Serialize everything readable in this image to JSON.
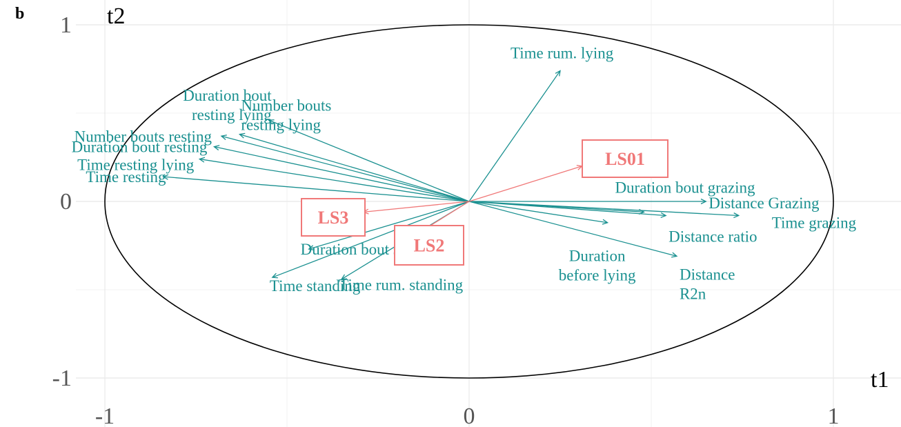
{
  "chart_data": {
    "type": "scatter",
    "panel_label": "b",
    "xlabel": "t1",
    "ylabel": "t2",
    "xlim": [
      -1.1,
      1.1
    ],
    "ylim": [
      -1.03,
      1.03
    ],
    "x_ticks": [
      {
        "value": -1,
        "label": "-1"
      },
      {
        "value": 0,
        "label": "0"
      },
      {
        "value": 1,
        "label": "1"
      }
    ],
    "y_ticks": [
      {
        "value": -1,
        "label": "-1"
      },
      {
        "value": 0,
        "label": "0"
      },
      {
        "value": 1,
        "label": "1"
      }
    ],
    "grid": true,
    "correlation_circle": true,
    "colors": {
      "variables": "#1a9090",
      "supplementary": "#f07878",
      "grid": "#e8e8e8",
      "circle": "#000000"
    },
    "variables": [
      {
        "name": "Time rum. lying",
        "lines": [
          "Time rum. lying"
        ],
        "x": 0.25,
        "y": 0.74,
        "anchor": "start"
      },
      {
        "name": "Duration bout resting lying",
        "lines": [
          "Duration bout",
          "resting lying"
        ],
        "x": -0.55,
        "y": 0.46,
        "anchor": "end"
      },
      {
        "name": "Number bouts resting lying",
        "lines": [
          "Number bouts",
          "resting lying"
        ],
        "x": -0.63,
        "y": 0.38,
        "anchor": "start"
      },
      {
        "name": "Number bouts resting",
        "lines": [
          "Number bouts resting"
        ],
        "x": -0.68,
        "y": 0.37,
        "anchor": "end"
      },
      {
        "name": "Duration bout resting",
        "lines": [
          "Duration bout resting"
        ],
        "x": -0.7,
        "y": 0.31,
        "anchor": "end"
      },
      {
        "name": "Time resting lying",
        "lines": [
          "Time resting lying"
        ],
        "x": -0.74,
        "y": 0.24,
        "anchor": "end"
      },
      {
        "name": "Time resting",
        "lines": [
          "Time resting"
        ],
        "x": -0.84,
        "y": 0.14,
        "anchor": "end"
      },
      {
        "name": "Duration bout grazing",
        "lines": [
          "Duration bout grazing"
        ],
        "x": 0.48,
        "y": -0.06,
        "anchor": "start"
      },
      {
        "name": "Distance Grazing",
        "lines": [
          "Distance Grazing"
        ],
        "x": 0.65,
        "y": 0.0,
        "anchor": "start"
      },
      {
        "name": "Time grazing",
        "lines": [
          "Time grazing"
        ],
        "x": 0.74,
        "y": -0.08,
        "anchor": "start"
      },
      {
        "name": "Distance ratio",
        "lines": [
          "Distance ratio"
        ],
        "x": 0.54,
        "y": -0.08,
        "anchor": "start"
      },
      {
        "name": "Distance R2n",
        "lines": [
          "Distance",
          "R2n"
        ],
        "x": 0.57,
        "y": -0.31,
        "anchor": "start"
      },
      {
        "name": "Duration before lying",
        "lines": [
          "Duration",
          "before lying"
        ],
        "x": 0.38,
        "y": -0.12,
        "anchor": "middle"
      },
      {
        "name": "Duration bout standing",
        "lines": [
          "Duration bout standing"
        ],
        "x": -0.44,
        "y": -0.27,
        "anchor": "start"
      },
      {
        "name": "Time standing",
        "lines": [
          "Time standing"
        ],
        "x": -0.54,
        "y": -0.43,
        "anchor": "start"
      },
      {
        "name": "Time rum. standing",
        "lines": [
          "Time rum. standing"
        ],
        "x": -0.35,
        "y": -0.44,
        "anchor": "start"
      }
    ],
    "supplementary": [
      {
        "name": "LS01",
        "x": 0.31,
        "y": 0.2
      },
      {
        "name": "LS3",
        "x": -0.29,
        "y": -0.06
      },
      {
        "name": "LS2",
        "x": -0.14,
        "y": -0.18
      }
    ]
  }
}
